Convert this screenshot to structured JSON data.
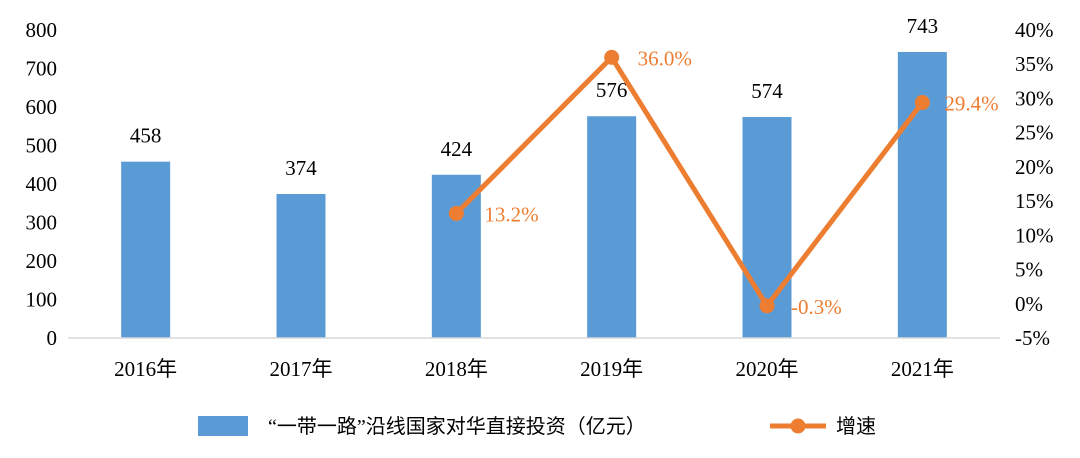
{
  "chart_data": {
    "type": "bar+line",
    "categories": [
      "2016年",
      "2017年",
      "2018年",
      "2019年",
      "2020年",
      "2021年"
    ],
    "bar_series": {
      "name": "“一带一路”沿线国家对华直接投资（亿元）",
      "values": [
        458,
        374,
        424,
        576,
        574,
        743
      ],
      "labels": [
        "458",
        "374",
        "424",
        "576",
        "574",
        "743"
      ],
      "color": "#5B9BD5"
    },
    "line_series": {
      "name": "增速",
      "x": [
        "2018年",
        "2019年",
        "2020年",
        "2021年"
      ],
      "values": [
        13.2,
        36.0,
        -0.3,
        29.4
      ],
      "labels": [
        "13.2%",
        "36.0%",
        "-0.3%",
        "29.4%"
      ],
      "color": "#ED7D31"
    },
    "y_left": {
      "min": 0,
      "max": 800,
      "step": 100,
      "tick_labels": [
        "0",
        "100",
        "200",
        "300",
        "400",
        "500",
        "600",
        "700",
        "800"
      ]
    },
    "y_right": {
      "min": -5,
      "max": 40,
      "step": 5,
      "tick_labels": [
        "-5%",
        "0%",
        "5%",
        "10%",
        "15%",
        "20%",
        "25%",
        "30%",
        "35%",
        "40%"
      ]
    },
    "axis_color": "#D9D9D9",
    "text_color": "#000000",
    "grid": false,
    "legend_position": "bottom"
  }
}
